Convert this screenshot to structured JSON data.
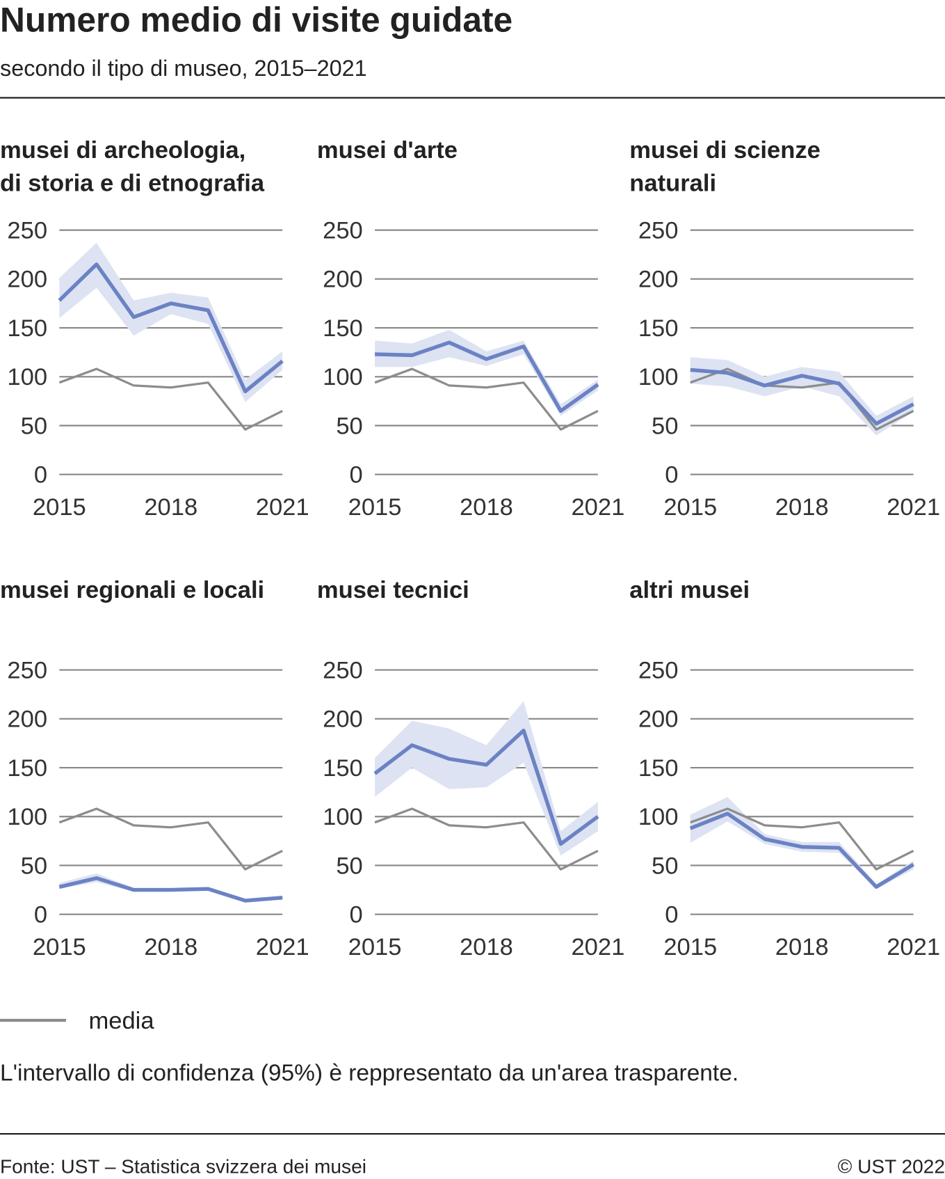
{
  "title": "Numero medio di visite guidate",
  "subtitle": "secondo il tipo di museo, 2015–2021",
  "note": "L'intervallo di confidenza (95%) è reppresentato da un'area trasparente.",
  "source": "Fonte: UST – Statistica svizzera dei musei",
  "copyright": "© UST 2022",
  "chart_data": [
    {
      "type": "line",
      "title": [
        "musei di archeologia,",
        "di storia e di etnografia"
      ],
      "x": [
        2015,
        2016,
        2017,
        2018,
        2019,
        2020,
        2021
      ],
      "xlim": [
        2015,
        2021
      ],
      "xticks": [
        2015,
        2018,
        2021
      ],
      "ylim": [
        0,
        250
      ],
      "yticks": [
        0,
        50,
        100,
        150,
        200,
        250
      ],
      "grid": true,
      "series": [
        {
          "name": "media",
          "color": "#8c8c8c",
          "values": [
            94,
            108,
            91,
            89,
            94,
            46,
            65
          ]
        },
        {
          "color": "#6b82c4",
          "band_color": "#dde3f2",
          "values": [
            178,
            215,
            161,
            175,
            168,
            85,
            116
          ],
          "lower": [
            160,
            191,
            142,
            164,
            154,
            74,
            107
          ],
          "upper": [
            201,
            237,
            178,
            186,
            181,
            97,
            126
          ]
        }
      ]
    },
    {
      "type": "line",
      "title": [
        "musei d'arte"
      ],
      "x": [
        2015,
        2016,
        2017,
        2018,
        2019,
        2020,
        2021
      ],
      "xlim": [
        2015,
        2021
      ],
      "xticks": [
        2015,
        2018,
        2021
      ],
      "ylim": [
        0,
        250
      ],
      "yticks": [
        0,
        50,
        100,
        150,
        200,
        250
      ],
      "grid": true,
      "series": [
        {
          "name": "media",
          "color": "#8c8c8c",
          "values": [
            94,
            108,
            91,
            89,
            94,
            46,
            65
          ]
        },
        {
          "color": "#6b82c4",
          "band_color": "#dde3f2",
          "values": [
            123,
            122,
            135,
            118,
            131,
            65,
            92
          ],
          "lower": [
            110,
            110,
            120,
            111,
            123,
            60,
            86
          ],
          "upper": [
            137,
            134,
            148,
            126,
            137,
            72,
            97
          ]
        }
      ]
    },
    {
      "type": "line",
      "title": [
        "musei di scienze",
        "naturali"
      ],
      "x": [
        2015,
        2016,
        2017,
        2018,
        2019,
        2020,
        2021
      ],
      "xlim": [
        2015,
        2021
      ],
      "xticks": [
        2015,
        2018,
        2021
      ],
      "ylim": [
        0,
        250
      ],
      "yticks": [
        0,
        50,
        100,
        150,
        200,
        250
      ],
      "grid": true,
      "series": [
        {
          "name": "media",
          "color": "#8c8c8c",
          "values": [
            94,
            108,
            91,
            89,
            94,
            46,
            65
          ]
        },
        {
          "color": "#6b82c4",
          "band_color": "#dde3f2",
          "values": [
            107,
            104,
            91,
            101,
            93,
            52,
            72
          ],
          "lower": [
            93,
            90,
            80,
            90,
            80,
            40,
            64
          ],
          "upper": [
            120,
            117,
            100,
            110,
            105,
            60,
            80
          ]
        }
      ]
    },
    {
      "type": "line",
      "title": [
        "musei regionali e locali"
      ],
      "x": [
        2015,
        2016,
        2017,
        2018,
        2019,
        2020,
        2021
      ],
      "xlim": [
        2015,
        2021
      ],
      "xticks": [
        2015,
        2018,
        2021
      ],
      "ylim": [
        0,
        250
      ],
      "yticks": [
        0,
        50,
        100,
        150,
        200,
        250
      ],
      "grid": true,
      "series": [
        {
          "name": "media",
          "color": "#8c8c8c",
          "values": [
            94,
            108,
            91,
            89,
            94,
            46,
            65
          ]
        },
        {
          "color": "#6b82c4",
          "band_color": "#dde3f2",
          "values": [
            28,
            37,
            25,
            25,
            26,
            14,
            17
          ],
          "lower": [
            26,
            33,
            23,
            23,
            24,
            12,
            15
          ],
          "upper": [
            32,
            42,
            27,
            27,
            28,
            16,
            19
          ]
        }
      ]
    },
    {
      "type": "line",
      "title": [
        "musei tecnici"
      ],
      "x": [
        2015,
        2016,
        2017,
        2018,
        2019,
        2020,
        2021
      ],
      "xlim": [
        2015,
        2021
      ],
      "xticks": [
        2015,
        2018,
        2021
      ],
      "ylim": [
        0,
        250
      ],
      "yticks": [
        0,
        50,
        100,
        150,
        200,
        250
      ],
      "grid": true,
      "series": [
        {
          "name": "media",
          "color": "#8c8c8c",
          "values": [
            94,
            108,
            91,
            89,
            94,
            46,
            65
          ]
        },
        {
          "color": "#6b82c4",
          "band_color": "#dde3f2",
          "values": [
            144,
            173,
            159,
            153,
            188,
            72,
            100
          ],
          "lower": [
            120,
            150,
            128,
            130,
            155,
            60,
            85
          ],
          "upper": [
            160,
            198,
            190,
            173,
            218,
            85,
            115
          ]
        }
      ]
    },
    {
      "type": "line",
      "title": [
        "altri musei"
      ],
      "x": [
        2015,
        2016,
        2017,
        2018,
        2019,
        2020,
        2021
      ],
      "xlim": [
        2015,
        2021
      ],
      "xticks": [
        2015,
        2018,
        2021
      ],
      "ylim": [
        0,
        250
      ],
      "yticks": [
        0,
        50,
        100,
        150,
        200,
        250
      ],
      "grid": true,
      "series": [
        {
          "name": "media",
          "color": "#8c8c8c",
          "values": [
            94,
            108,
            91,
            89,
            94,
            46,
            65
          ]
        },
        {
          "color": "#6b82c4",
          "band_color": "#dde3f2",
          "values": [
            88,
            103,
            77,
            69,
            68,
            28,
            51
          ],
          "lower": [
            73,
            95,
            72,
            64,
            63,
            26,
            46
          ],
          "upper": [
            102,
            120,
            82,
            74,
            74,
            31,
            55
          ]
        }
      ]
    }
  ]
}
